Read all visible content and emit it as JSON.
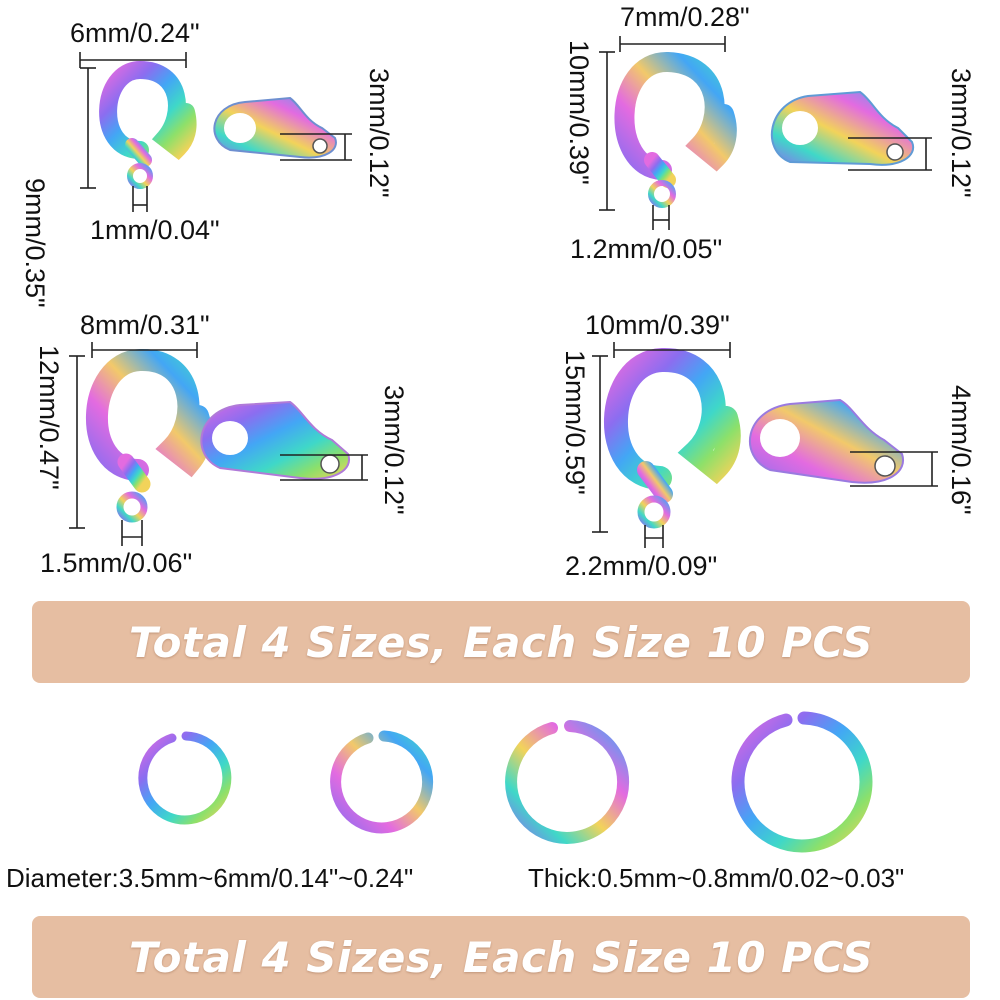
{
  "colors": {
    "banner_bg": "#e6bea2",
    "rainbow": [
      "#e36be0",
      "#8c6df0",
      "#43a6f5",
      "#3fd8c8",
      "#8de06a",
      "#f2d35a"
    ]
  },
  "clasps": [
    {
      "width_label": "6mm/0.24\"",
      "height_label": "9mm/0.35\"",
      "hole_label": "1mm/0.04\"",
      "thickness_label": "3mm/0.12\""
    },
    {
      "width_label": "7mm/0.28\"",
      "height_label": "10mm/0.39\"",
      "hole_label": "1.2mm/0.05\"",
      "thickness_label": "3mm/0.12\""
    },
    {
      "width_label": "8mm/0.31\"",
      "height_label": "12mm/0.47\"",
      "hole_label": "1.5mm/0.06\"",
      "thickness_label": "3mm/0.12\""
    },
    {
      "width_label": "10mm/0.39\"",
      "height_label": "15mm/0.59\"",
      "hole_label": "2.2mm/0.09\"",
      "thickness_label": "4mm/0.16\""
    }
  ],
  "banner_top": "Total 4 Sizes, Each Size 10 PCS",
  "banner_bottom": "Total 4 Sizes, Each Size 10 PCS",
  "jump_rings": {
    "diameter_label": "Diameter:3.5mm~6mm/0.14\"~0.24\"",
    "thick_label": "Thick:0.5mm~0.8mm/0.02~0.03\""
  }
}
